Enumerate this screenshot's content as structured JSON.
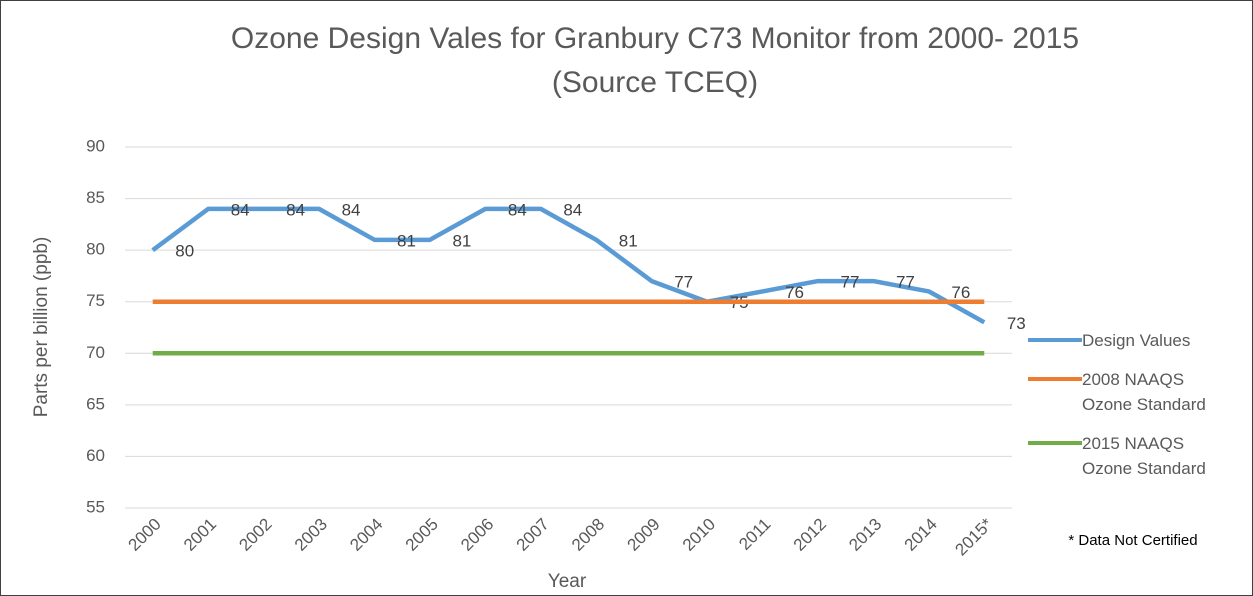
{
  "chart_data": {
    "type": "line",
    "title": [
      "Ozone Design Vales for Granbury C73 Monitor from 2000- 2015",
      "(Source TCEQ)"
    ],
    "x_label": "Year",
    "y_label": "Parts per billion (ppb)",
    "annotation": "* Data Not Certified",
    "categories": [
      "2000",
      "2001",
      "2002",
      "2003",
      "2004",
      "2005",
      "2006",
      "2007",
      "2008",
      "2009",
      "2010",
      "2011",
      "2012",
      "2013",
      "2014",
      "2015*"
    ],
    "series": [
      {
        "name": "Design Values",
        "color": "#5b9bd5",
        "values": [
          80,
          84,
          84,
          84,
          81,
          81,
          84,
          84,
          81,
          77,
          75,
          76,
          77,
          77,
          76,
          73
        ],
        "data_labels": true
      },
      {
        "name": "2008 NAAQS Ozone Standard",
        "color": "#ed7d31",
        "values": [
          75,
          75,
          75,
          75,
          75,
          75,
          75,
          75,
          75,
          75,
          75,
          75,
          75,
          75,
          75,
          75
        ]
      },
      {
        "name": "2015 NAAQS Ozone Standard",
        "color": "#70ad47",
        "values": [
          70,
          70,
          70,
          70,
          70,
          70,
          70,
          70,
          70,
          70,
          70,
          70,
          70,
          70,
          70,
          70
        ]
      }
    ],
    "ylim": [
      55,
      90
    ],
    "yticks": [
      55,
      60,
      65,
      70,
      75,
      80,
      85,
      90
    ],
    "grid": true,
    "legend": "right"
  }
}
